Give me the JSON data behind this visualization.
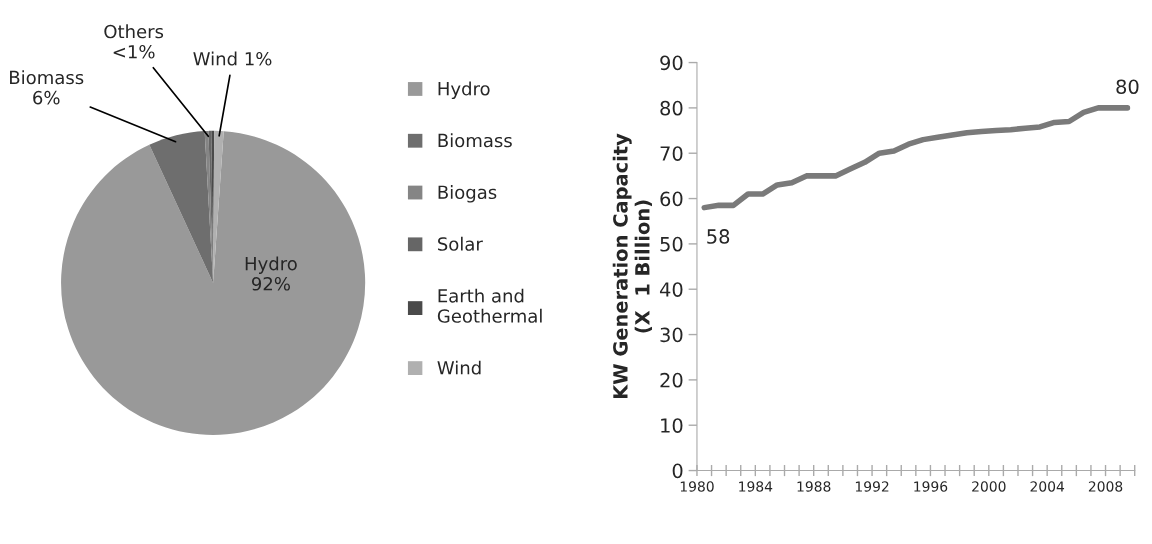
{
  "chart_data": [
    {
      "type": "pie",
      "categories": [
        "Hydro",
        "Biomass",
        "Biogas",
        "Solar",
        "Earth and\nGeothermal",
        "Wind"
      ],
      "values": [
        92,
        6,
        0.4,
        0.3,
        0.3,
        1
      ],
      "colors": [
        "#999999",
        "#6e6e6e",
        "#858585",
        "#666666",
        "#4a4a4a",
        "#b0b0b0"
      ],
      "value_labels": [
        "Hydro\n92%",
        "Biomass\n6%",
        null,
        "Others\n<1%",
        null,
        "Wind 1%"
      ],
      "legend": "right"
    },
    {
      "type": "line",
      "ylabel": "KW Generation Capacity\n(X  1 Billion)",
      "x": [
        1980.5,
        1981.5,
        1982.5,
        1983.5,
        1984.5,
        1985.5,
        1986.5,
        1987.5,
        1988.5,
        1989.5,
        1990.5,
        1991.5,
        1992.5,
        1993.5,
        1994.5,
        1995.5,
        1996.5,
        1997.5,
        1998.5,
        1999.5,
        2000.5,
        2001.5,
        2002.5,
        2003.5,
        2004.5,
        2005.5,
        2006.5,
        2007.5,
        2008.5,
        2009.5
      ],
      "values": [
        58,
        58.5,
        58.5,
        61,
        61,
        63,
        63.5,
        65,
        65,
        65,
        66.5,
        68,
        70,
        70.5,
        72,
        73,
        73.5,
        74,
        74.5,
        74.8,
        75,
        75.2,
        75.5,
        75.8,
        76.8,
        77,
        79,
        80,
        80,
        80
      ],
      "color": "#7a7a7a",
      "annotations": [
        {
          "text": "58",
          "x": 1980.5,
          "y": 58
        },
        {
          "text": "80",
          "x": 2009.5,
          "y": 80
        }
      ],
      "xlim": [
        1980,
        2010
      ],
      "xticks": [
        1980,
        {
          "value": 1981,
          "label": null
        },
        {
          "value": 1982,
          "label": null
        },
        {
          "value": 1983,
          "label": null
        },
        1984,
        {
          "value": 1985,
          "label": null
        },
        {
          "value": 1986,
          "label": null
        },
        {
          "value": 1987,
          "label": null
        },
        1988,
        {
          "value": 1989,
          "label": null
        },
        {
          "value": 1990,
          "label": null
        },
        {
          "value": 1991,
          "label": null
        },
        1992,
        {
          "value": 1993,
          "label": null
        },
        {
          "value": 1994,
          "label": null
        },
        {
          "value": 1995,
          "label": null
        },
        1996,
        {
          "value": 1997,
          "label": null
        },
        {
          "value": 1998,
          "label": null
        },
        {
          "value": 1999,
          "label": null
        },
        2000,
        {
          "value": 2001,
          "label": null
        },
        {
          "value": 2002,
          "label": null
        },
        {
          "value": 2003,
          "label": null
        },
        2004,
        {
          "value": 2005,
          "label": null
        },
        {
          "value": 2006,
          "label": null
        },
        {
          "value": 2007,
          "label": null
        },
        2008,
        {
          "value": 2009,
          "label": null
        },
        {
          "value": 2010,
          "label": null
        }
      ],
      "ylim": [
        0,
        90
      ],
      "yticks": [
        0,
        10,
        20,
        30,
        40,
        50,
        60,
        70,
        80,
        90
      ],
      "grid": false,
      "legend": false
    }
  ]
}
